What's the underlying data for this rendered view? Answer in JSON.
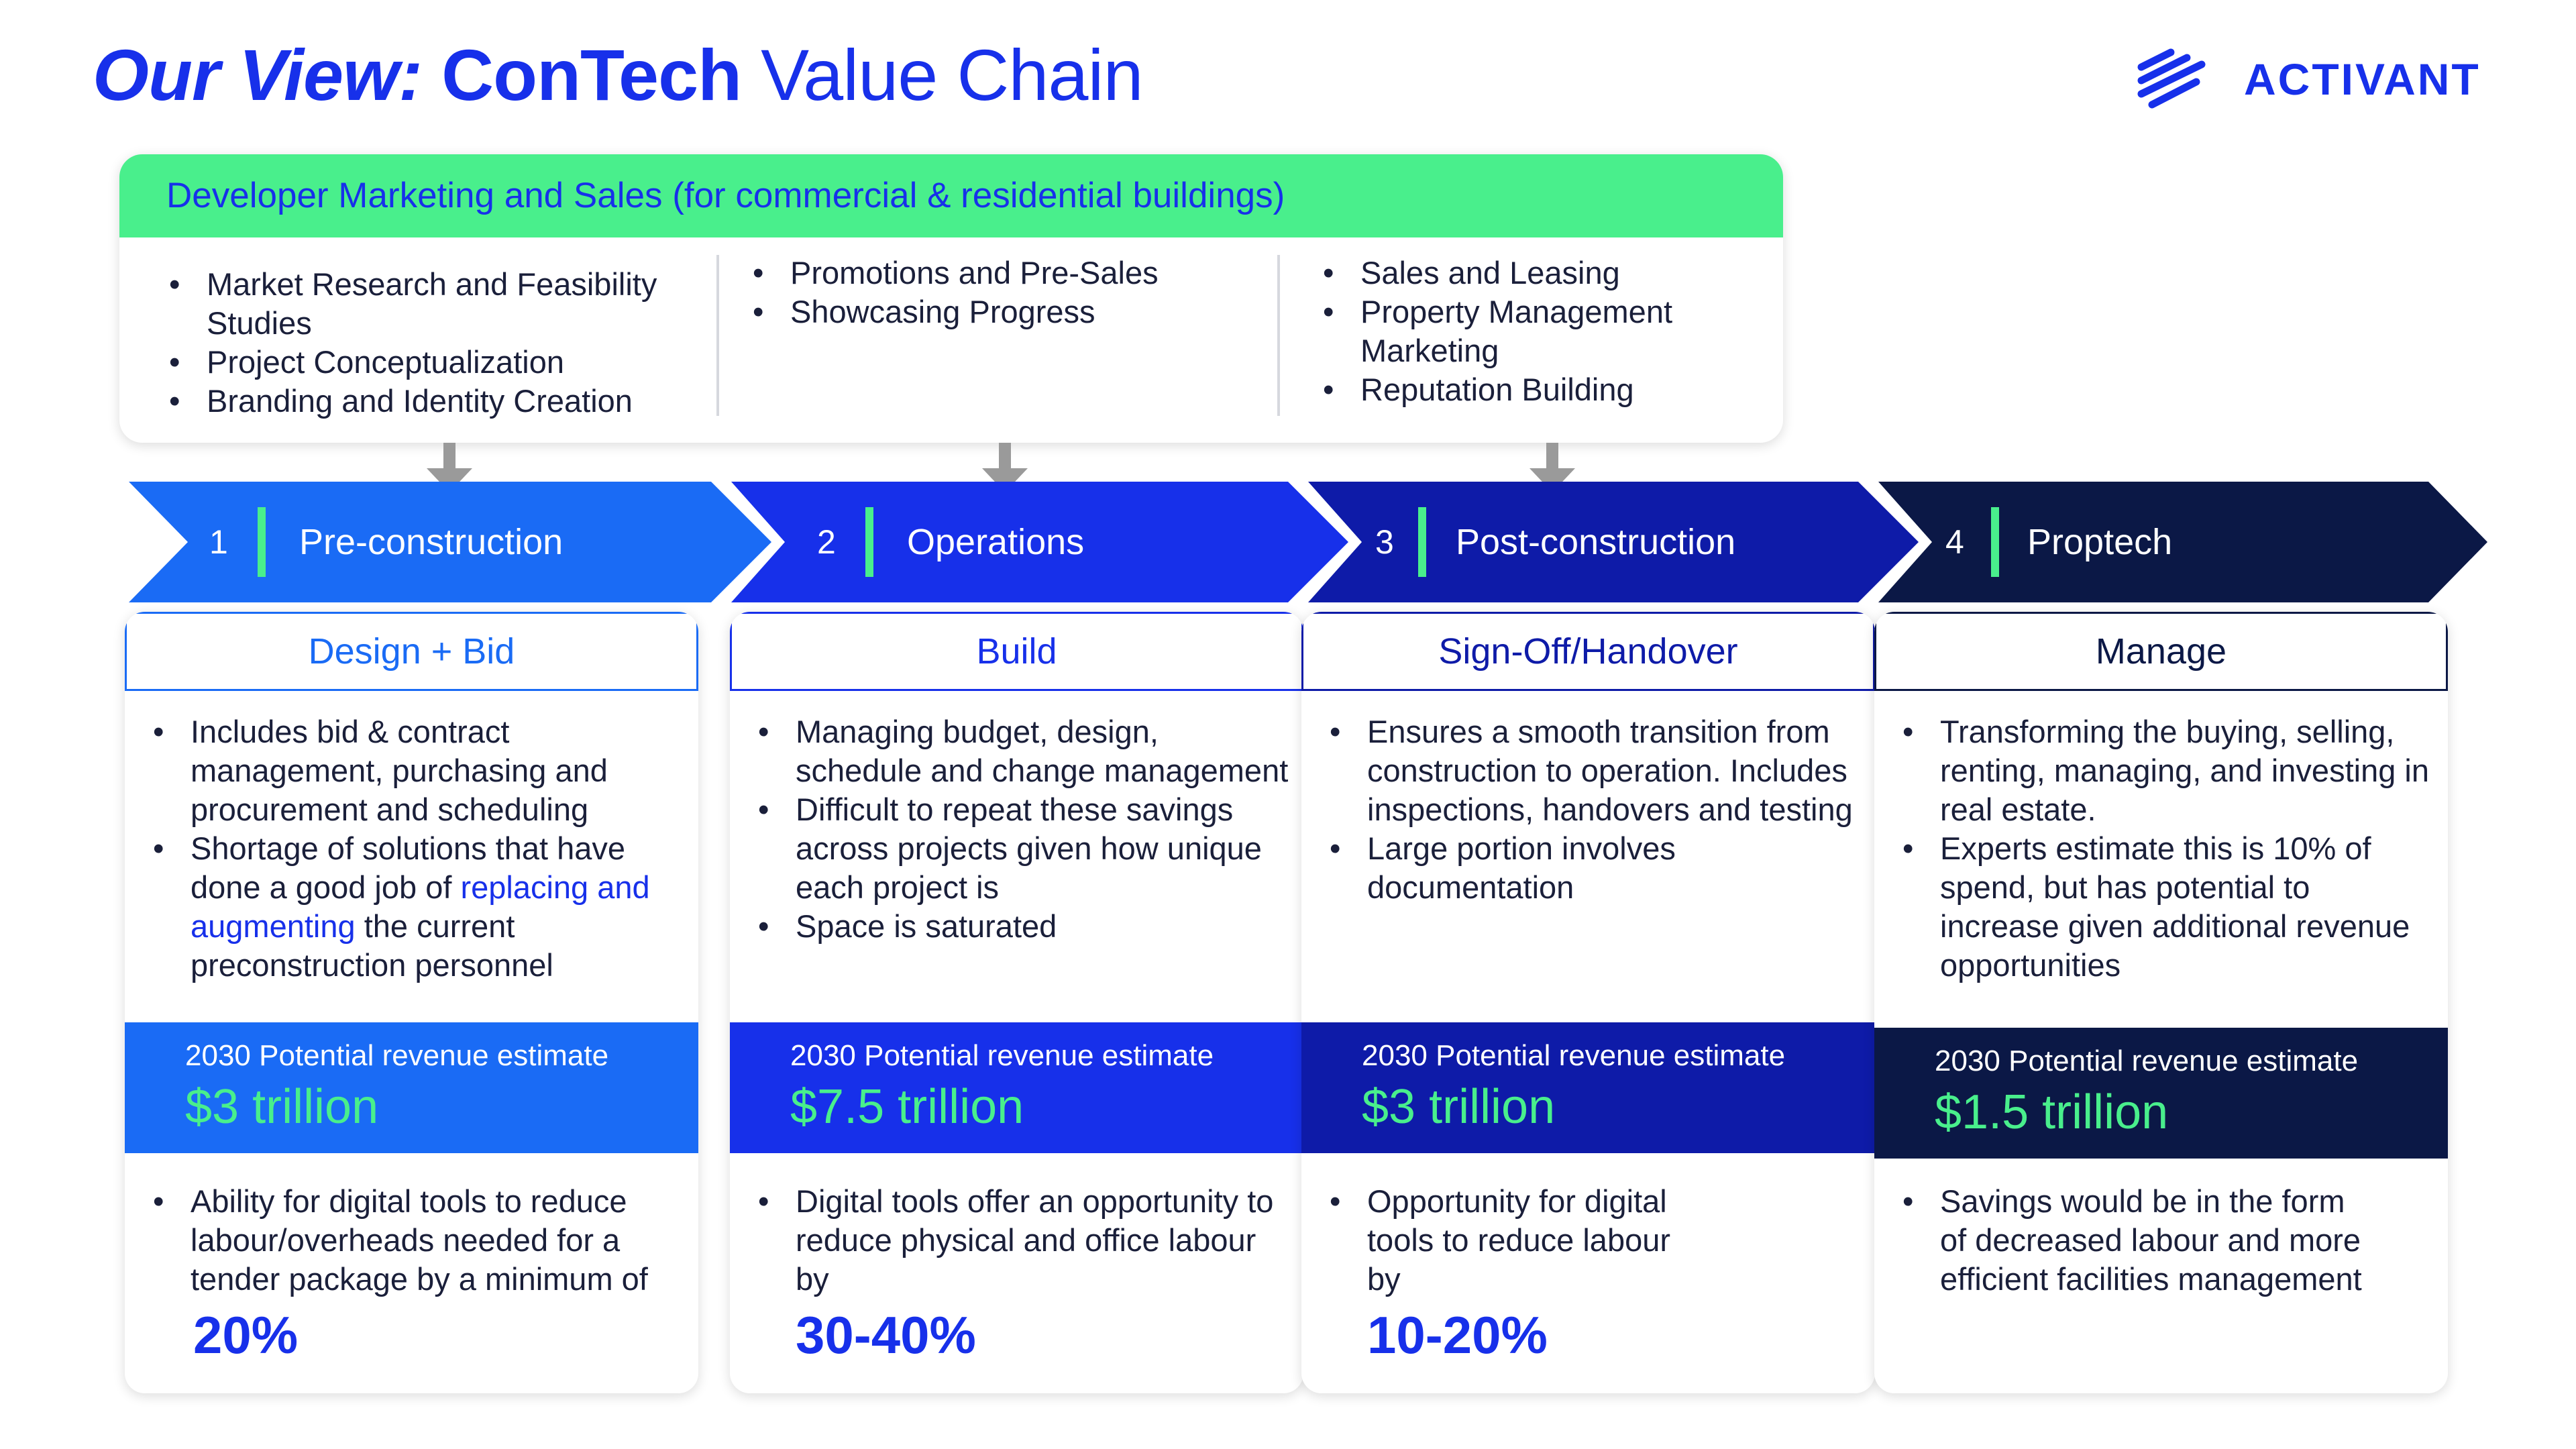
{
  "title": {
    "prefix": "Our View:",
    "bold": "ConTech",
    "rest": " Value Chain"
  },
  "logo": {
    "text": "ACTIVANT",
    "icon": "activant-stripes-icon",
    "color": "#1730ea"
  },
  "developer_box": {
    "header": "Developer Marketing and Sales (for commercial & residential buildings)",
    "columns": [
      [
        "Market Research and Feasibility Studies",
        "Project Conceptualization",
        "Branding and Identity Creation"
      ],
      [
        "Promotions and Pre-Sales",
        "Showcasing Progress"
      ],
      [
        "Sales and Leasing",
        "Property Management Marketing",
        "Reputation Building"
      ]
    ]
  },
  "stages": [
    {
      "number": "1",
      "name": "Pre-construction",
      "card_title": "Design + Bid",
      "color": "#1a6bf5",
      "bullets": [
        "Includes bid & contract management, purchasing and procurement and scheduling"
      ],
      "bullet2_pre": "Shortage of solutions that have done a good job of ",
      "bullet2_link": "replacing and augmenting",
      "bullet2_post": " the current preconstruction personnel",
      "revenue_label": "2030 Potential revenue estimate",
      "revenue_value": "$3 trillion",
      "bottom_text": "Ability for digital tools to reduce labour/overheads needed for a tender package by a minimum of",
      "bottom_highlight": "20%"
    },
    {
      "number": "2",
      "name": "Operations",
      "card_title": "Build",
      "color": "#1730ea",
      "bullets": [
        "Managing budget, design, schedule and change management",
        "Difficult to repeat these savings across projects given how unique each project is",
        "Space is saturated"
      ],
      "revenue_label": "2030 Potential revenue estimate",
      "revenue_value": "$7.5 trillion",
      "bottom_text": "Digital tools offer an opportunity to reduce physical and office labour by",
      "bottom_highlight": "30-40%"
    },
    {
      "number": "3",
      "name": "Post-construction",
      "card_title": "Sign-Off/Handover",
      "color": "#0e1ba8",
      "bullets": [
        "Ensures a smooth transition from construction to operation. Includes inspections, handovers and testing",
        "Large portion involves documentation"
      ],
      "revenue_label": "2030 Potential revenue estimate",
      "revenue_value": "$3 trillion",
      "bottom_text": "Opportunity for digital tools to reduce labour by",
      "bottom_highlight": "10-20%"
    },
    {
      "number": "4",
      "name": "Proptech",
      "card_title": "Manage",
      "color": "#0b1846",
      "bullets": [
        "Transforming the buying, selling, renting, managing, and investing in real estate.",
        "Experts estimate this is 10% of spend, but has potential to increase given additional revenue opportunities"
      ],
      "revenue_label": "2030 Potential revenue estimate",
      "revenue_value": "$1.5 trillion",
      "bottom_text": "Savings would be in the form of decreased labour and more efficient facilities management",
      "bottom_highlight": ""
    }
  ],
  "colors": {
    "accent_green": "#49ef8c",
    "title_blue": "#1730ea"
  }
}
